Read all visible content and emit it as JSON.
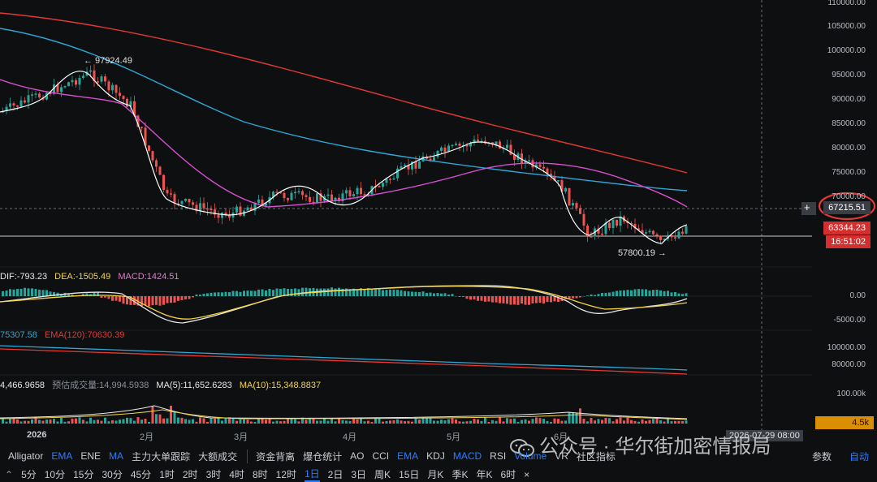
{
  "price_axis": [
    "110000.00",
    "105000.00",
    "100000.00",
    "95000.00",
    "90000.00",
    "85000.00",
    "80000.00",
    "75000.00",
    "70000.00"
  ],
  "price_tags": {
    "current": "67215.51",
    "last": "63344.23",
    "countdown": "16:51:02",
    "plus": "+"
  },
  "annotations": {
    "high": "← 97924.49",
    "low": "57800.19 →"
  },
  "macd": {
    "dif": "DIF:-793.23",
    "dea": "DEA:-1505.49",
    "macd": "MACD:1424.51",
    "axis": [
      "0.00",
      "-5000.00"
    ]
  },
  "ema": {
    "ema_a": "75307.58",
    "ema_b": "EMA(120):70630.39",
    "axis": [
      "100000.00",
      "80000.00"
    ]
  },
  "volume": {
    "v1": "4,466.9658",
    "v2": "预估成交量:14,994.5938",
    "ma5": "MA(5):11,652.6283",
    "ma10": "MA(10):15,348.8837",
    "axis": "100.00k",
    "tag": "4.5k"
  },
  "x_axis": [
    "2026",
    "2月",
    "3月",
    "4月",
    "5月",
    "6月"
  ],
  "crosshair_time": "2026-07-29 08:00",
  "indicators": [
    "Alligator",
    "EMA",
    "ENE",
    "MA",
    "主力大单跟踪",
    "大额成交",
    "资金背离",
    "爆仓统计",
    "AO",
    "CCI",
    "EMA",
    "KDJ",
    "MACD",
    "RSI",
    "Volume",
    "VR",
    "社区指标"
  ],
  "indicator_active": [
    false,
    true,
    false,
    true,
    false,
    false,
    false,
    false,
    false,
    false,
    true,
    false,
    true,
    false,
    true,
    false,
    false
  ],
  "indicator_right": [
    "参数",
    "自动"
  ],
  "timeframes": [
    "5分",
    "10分",
    "15分",
    "30分",
    "45分",
    "1时",
    "2时",
    "3时",
    "4时",
    "8时",
    "12时",
    "1日",
    "2日",
    "3日",
    "周K",
    "15日",
    "月K",
    "季K",
    "年K",
    "6时",
    "×"
  ],
  "timeframe_selected": "1日",
  "watermark": "公众号 · 华尔街加密情报局",
  "colors": {
    "up": "#26a69a",
    "down": "#ef5350",
    "ma_red": "#e53935",
    "ma_blue": "#2ea7d6",
    "ma_pink": "#d94fd0",
    "price_line": "#ffffff",
    "dif": "#e8e8e8",
    "dea": "#f5d442",
    "vol_tag": "#d98e04",
    "highlight_circle": "#e53935"
  }
}
